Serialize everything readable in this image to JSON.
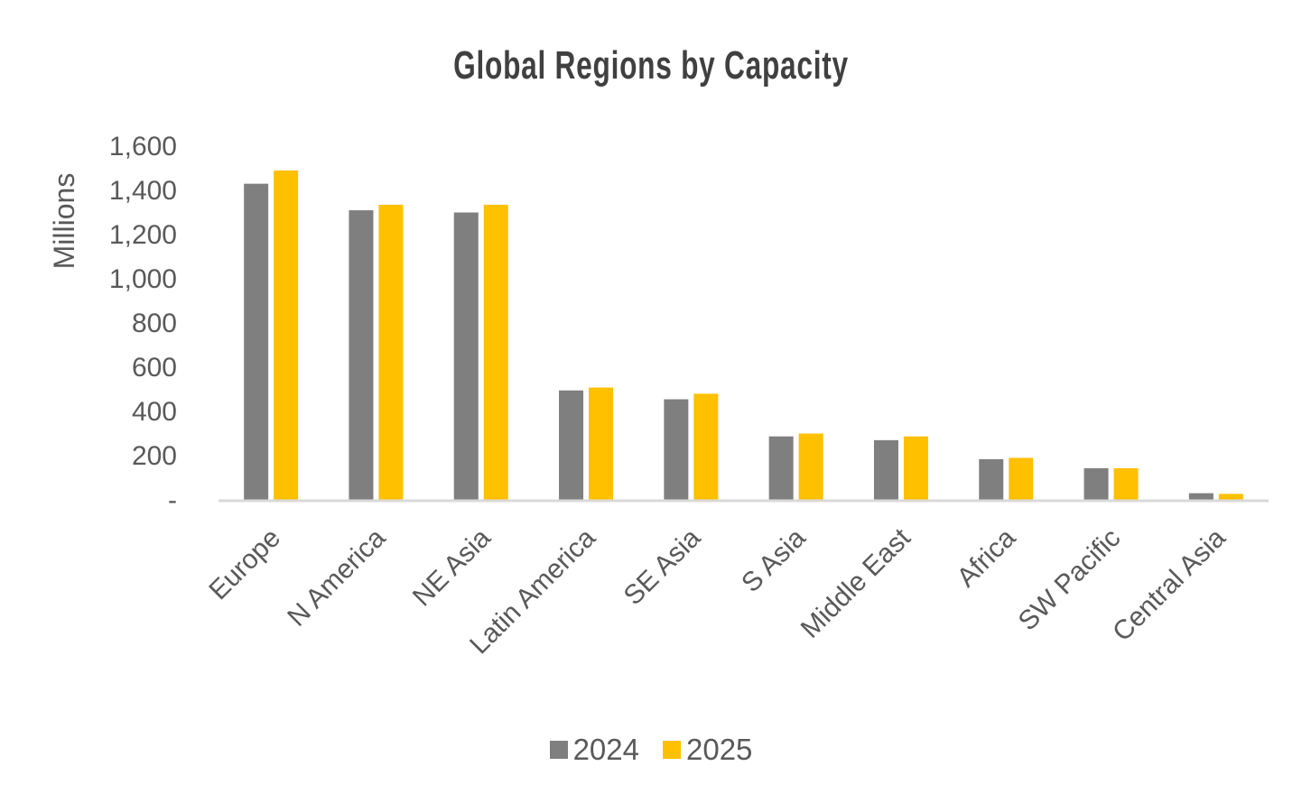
{
  "chart_data": {
    "type": "bar",
    "title": "Global Regions by Capacity",
    "xlabel": "",
    "ylabel": "Millions",
    "ylim": [
      0,
      1600
    ],
    "yticks": [
      0,
      200,
      400,
      600,
      800,
      1000,
      1200,
      1400,
      1600
    ],
    "ytick_labels": [
      "-",
      "200",
      "400",
      "600",
      "800",
      "1,000",
      "1,200",
      "1,400",
      "1,600"
    ],
    "grid": false,
    "legend_position": "bottom",
    "categories": [
      "Europe",
      "N America",
      "NE Asia",
      "Latin America",
      "SE Asia",
      "S Asia",
      "Middle East",
      "Africa",
      "SW Pacific",
      "Central Asia"
    ],
    "series": [
      {
        "name": "2024",
        "color": "#7f7f7f",
        "values": [
          1430,
          1310,
          1300,
          495,
          455,
          287,
          270,
          184,
          143,
          30
        ]
      },
      {
        "name": "2025",
        "color": "#ffc000",
        "values": [
          1490,
          1335,
          1335,
          508,
          480,
          300,
          287,
          190,
          143,
          27
        ]
      }
    ]
  }
}
